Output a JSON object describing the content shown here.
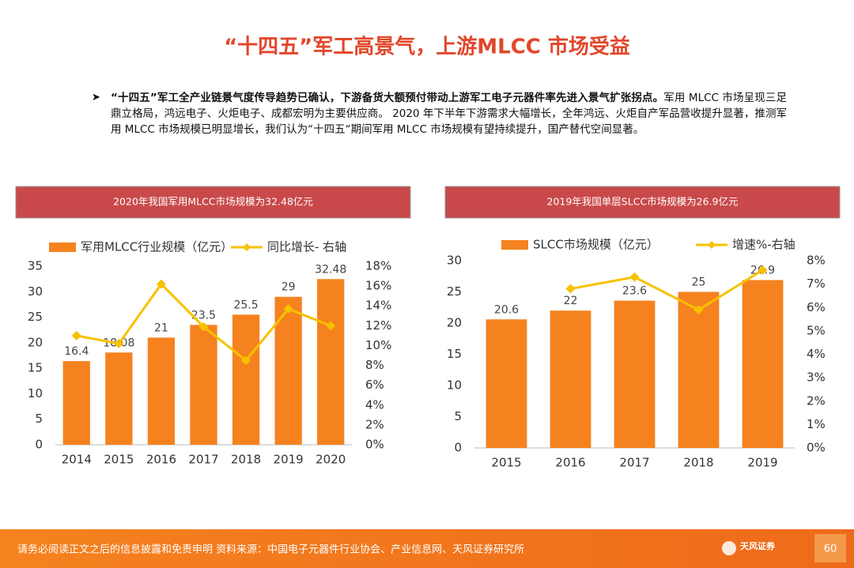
{
  "title": "“十四五”军工高景气，上游MLCC 市场受益",
  "bullet_lead": "“十四五”军工全产业链景气度传导趋势已确认，下游备货大额预付带动上游军工电子元器件率先进入景气扩张拐点。",
  "bullet_text": "军用 MLCC 市场呈现三足鼎立格局，鸿远电子、火炬电子、成都宏明为主要供应商。 2020 年下半年下游需求大幅增长，全年鸿远、火炬自产军品营收提升显著，推测军用 MLCC 市场规模已明显增长，我们认为“十四五“期间军用 MLCC 市场规模有望持续提升，国产替代空间显著。",
  "footer": "请务必阅读正文之后的信息披露和免责申明   资料来源：中国电子元器件行业协会、产业信息网、天风证券研究所",
  "logo": "天风证券",
  "page_number": "60",
  "chart_data": [
    {
      "type": "bar",
      "title": "2020年我国军用MLCC市场规模为32.48亿元",
      "categories": [
        "2014",
        "2015",
        "2016",
        "2017",
        "2018",
        "2019",
        "2020"
      ],
      "series": [
        {
          "name": "军用MLCC行业规模（亿元）",
          "type": "bar",
          "color": "#f5821f",
          "values": [
            16.4,
            18.08,
            21,
            23.5,
            25.5,
            29,
            32.48
          ]
        },
        {
          "name": "同比增长- 右轴",
          "type": "line",
          "axis": "y2",
          "color": "#f7c100",
          "values": [
            11,
            10.2,
            16.2,
            11.9,
            8.5,
            13.7,
            12
          ]
        }
      ],
      "ylim": [
        0,
        35
      ],
      "yticks": [
        0,
        5,
        10,
        15,
        20,
        25,
        30,
        35
      ],
      "y2lim": [
        0,
        18
      ],
      "y2ticks": [
        {
          "value": 0,
          "label": "0%"
        },
        {
          "value": 2,
          "label": "2%"
        },
        {
          "value": 4,
          "label": "4%"
        },
        {
          "value": 6,
          "label": "6%"
        },
        {
          "value": 8,
          "label": "8%"
        },
        {
          "value": 10,
          "label": "10%"
        },
        {
          "value": 12,
          "label": "12%"
        },
        {
          "value": 14,
          "label": "14%"
        },
        {
          "value": 16,
          "label": "16%"
        },
        {
          "value": 18,
          "label": "18%"
        }
      ],
      "grid": false
    },
    {
      "type": "bar",
      "title": "2019年我国单层SLCC市场规模为26.9亿元",
      "categories": [
        "2015",
        "2016",
        "2017",
        "2018",
        "2019"
      ],
      "series": [
        {
          "name": "SLCC市场规模（亿元）",
          "type": "bar",
          "color": "#f5821f",
          "values": [
            20.6,
            22,
            23.6,
            25,
            26.9
          ]
        },
        {
          "name": "增速%-右轴",
          "type": "line",
          "axis": "y2",
          "color": "#f7c100",
          "values": [
            null,
            6.8,
            7.3,
            5.9,
            7.6
          ]
        }
      ],
      "ylim": [
        0,
        30
      ],
      "yticks": [
        0,
        5,
        10,
        15,
        20,
        25,
        30
      ],
      "y2lim": [
        0,
        8
      ],
      "y2ticks": [
        {
          "value": 0,
          "label": "0%"
        },
        {
          "value": 1,
          "label": "1%"
        },
        {
          "value": 2,
          "label": "2%"
        },
        {
          "value": 3,
          "label": "3%"
        },
        {
          "value": 4,
          "label": "4%"
        },
        {
          "value": 5,
          "label": "5%"
        },
        {
          "value": 6,
          "label": "6%"
        },
        {
          "value": 7,
          "label": "7%"
        },
        {
          "value": 8,
          "label": "8%"
        }
      ],
      "grid": false
    }
  ]
}
